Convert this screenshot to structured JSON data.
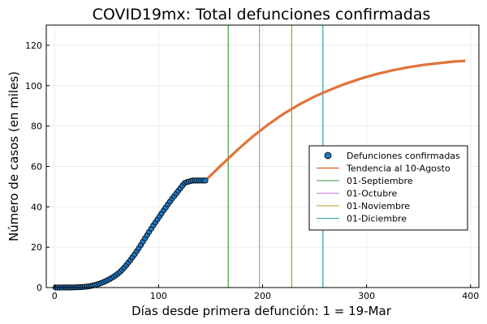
{
  "chart_data": {
    "type": "scatter",
    "title": "COVID19mx: Total defunciones confirmadas",
    "xlabel": "Días desde primera defunción: 1 = 19-Mar",
    "ylabel": "Número de casos (en miles)",
    "xlim": [
      -8,
      408
    ],
    "ylim": [
      0,
      130
    ],
    "xticks": [
      0,
      100,
      200,
      300,
      400
    ],
    "yticks": [
      0,
      20,
      40,
      60,
      80,
      100,
      120
    ],
    "grid": true,
    "legend_position": "right",
    "series": [
      {
        "name": "Defunciones confirmadas",
        "kind": "scatter",
        "color": "#1f77c4",
        "x": [
          1,
          3,
          5,
          7,
          9,
          11,
          13,
          15,
          17,
          19,
          21,
          23,
          25,
          27,
          29,
          31,
          33,
          35,
          37,
          39,
          41,
          43,
          45,
          47,
          49,
          51,
          53,
          55,
          57,
          59,
          61,
          63,
          65,
          67,
          69,
          71,
          73,
          75,
          77,
          79,
          81,
          83,
          85,
          87,
          89,
          91,
          93,
          95,
          97,
          99,
          101,
          103,
          105,
          107,
          109,
          111,
          113,
          115,
          117,
          119,
          121,
          123,
          125,
          127,
          129,
          131,
          133,
          135,
          137,
          139,
          141,
          143,
          145
        ],
        "y": [
          0.0,
          0.01,
          0.01,
          0.02,
          0.03,
          0.04,
          0.05,
          0.06,
          0.08,
          0.1,
          0.13,
          0.17,
          0.22,
          0.29,
          0.37,
          0.48,
          0.62,
          0.8,
          1.02,
          1.27,
          1.57,
          1.9,
          2.28,
          2.7,
          3.16,
          3.66,
          4.2,
          4.78,
          5.4,
          6.1,
          6.9,
          7.8,
          8.8,
          9.9,
          11.1,
          12.4,
          13.7,
          15.1,
          16.5,
          18.0,
          19.5,
          21.1,
          22.8,
          24.4,
          26.0,
          27.6,
          29.2,
          30.8,
          32.3,
          33.8,
          35.3,
          36.8,
          38.3,
          39.7,
          41.2,
          42.6,
          44.0,
          45.3,
          46.6,
          47.9,
          49.2,
          50.5,
          51.7,
          52.2,
          52.5,
          52.8,
          53.0,
          53.0,
          53.0,
          53.0,
          53.0,
          53.0,
          53.0
        ]
      },
      {
        "name": "Tendencia al 10-Agosto",
        "kind": "line",
        "color": "#e0733a",
        "x": [
          145,
          160,
          175,
          190,
          205,
          220,
          235,
          250,
          265,
          280,
          295,
          310,
          325,
          340,
          355,
          370,
          385,
          395
        ],
        "y": [
          53.0,
          60.5,
          67.8,
          74.6,
          80.6,
          86.0,
          90.6,
          94.6,
          98.0,
          101.0,
          103.6,
          105.8,
          107.6,
          109.1,
          110.3,
          111.2,
          112.0,
          112.3
        ]
      },
      {
        "name": "01-Septiembre",
        "kind": "vline",
        "color": "#3a9b3a",
        "x": 167
      },
      {
        "name": "01-Octubre",
        "kind": "vline",
        "color": "#c77bdc",
        "x": 197
      },
      {
        "name": "01-Noviembre",
        "kind": "vline",
        "color": "#b59520",
        "x": 228
      },
      {
        "name": "01-Diciembre",
        "kind": "vline",
        "color": "#23a89e",
        "x": 258
      }
    ]
  }
}
